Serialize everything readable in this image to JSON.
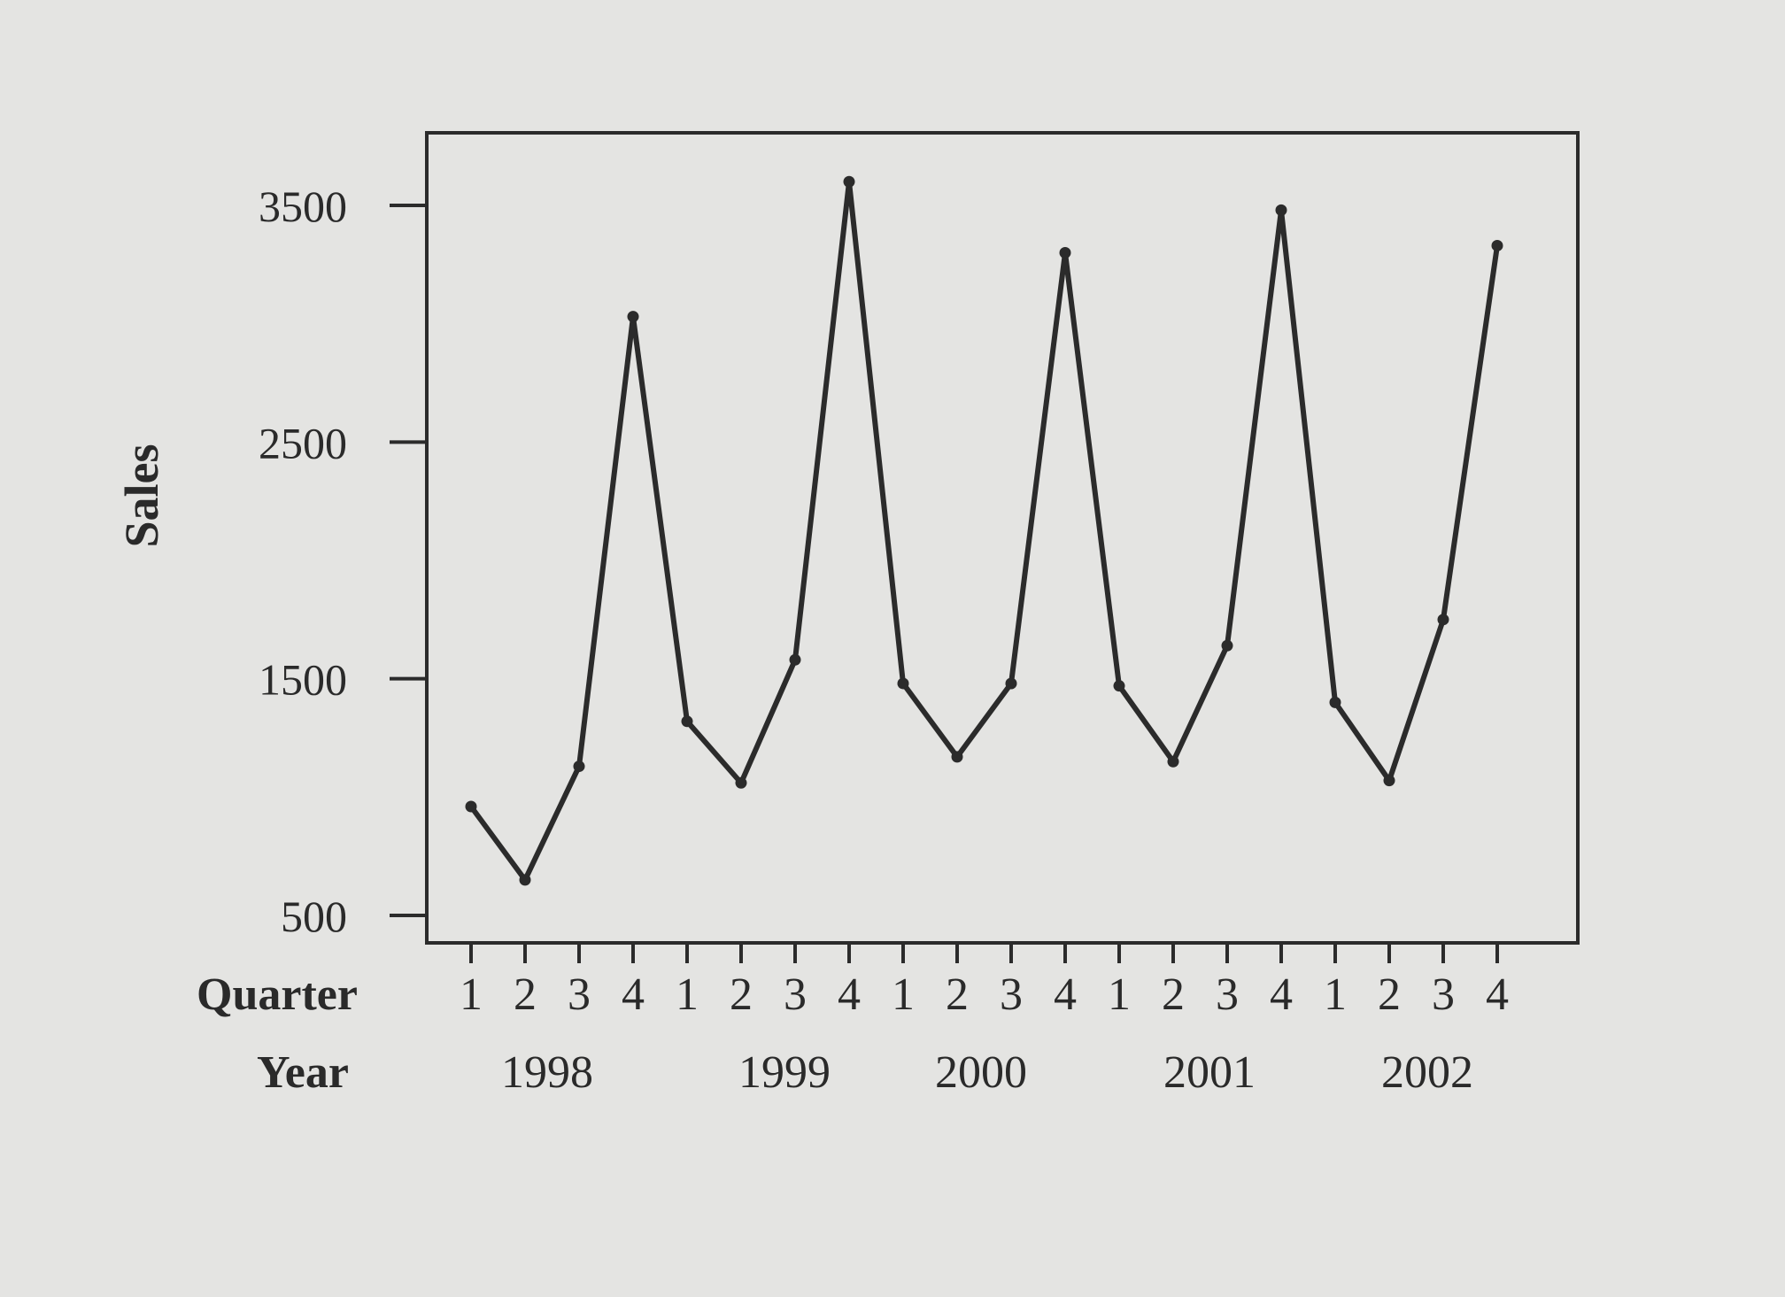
{
  "chart_data": {
    "type": "line",
    "ylabel": "Sales",
    "xlabel": "",
    "ylim": [
      500,
      3800
    ],
    "yticks": [
      500,
      1500,
      2500,
      3500
    ],
    "grid": false,
    "legend": "none",
    "row_labels": [
      "Quarter",
      "Year"
    ],
    "x_quarter_labels": [
      "1",
      "2",
      "3",
      "4",
      "1",
      "2",
      "3",
      "4",
      "1",
      "2",
      "3",
      "4",
      "1",
      "2",
      "3",
      "4",
      "1",
      "2",
      "3",
      "4"
    ],
    "years": [
      "1998",
      "1999",
      "2000",
      "2001",
      "2002"
    ],
    "series": [
      {
        "values": [
          960,
          650,
          1130,
          3030,
          1320,
          1060,
          1580,
          3600,
          1480,
          1170,
          1480,
          3300,
          1470,
          1150,
          1640,
          3480,
          1400,
          1070,
          1750,
          3330
        ]
      }
    ],
    "colors": {
      "line": "#2b2b2b",
      "background": "#e4e4e2",
      "frame": "#2b2b2b"
    }
  }
}
